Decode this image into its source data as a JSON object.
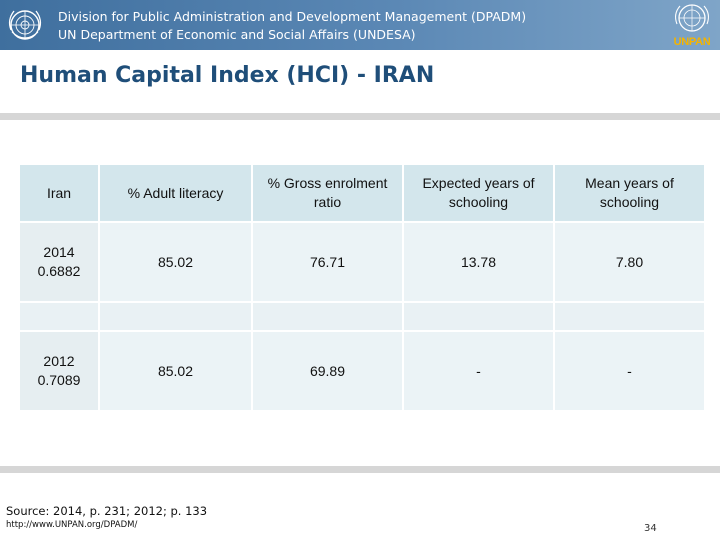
{
  "header": {
    "org_line_1": "Division for Public Administration and Development Management (DPADM)",
    "org_line_2": "UN Department of Economic and Social Affairs (UNDESA)",
    "logo_icon": "un-emblem-icon",
    "unpan_label": "UNPAN",
    "colors": {
      "band": "#4f7fae",
      "unpan": "#f4b400"
    }
  },
  "title": "Human Capital Index (HCI) - IRAN",
  "table": {
    "headers": [
      "Iran",
      "% Adult literacy",
      "% Gross enrolment ratio",
      "Expected years of schooling",
      "Mean years of schooling"
    ],
    "rows": [
      {
        "year": "2014",
        "hci": "0.6882",
        "values": [
          "85.02",
          "76.71",
          "13.78",
          "7.80"
        ]
      },
      {
        "year": "2012",
        "hci": "0.7089",
        "values": [
          "85.02",
          "69.89",
          "-",
          "-"
        ]
      }
    ]
  },
  "footer": {
    "source": "Source: 2014, p. 231; 2012; p. 133",
    "link": "http://www.UNPAN.org/DPADM/",
    "page_number": "34"
  }
}
